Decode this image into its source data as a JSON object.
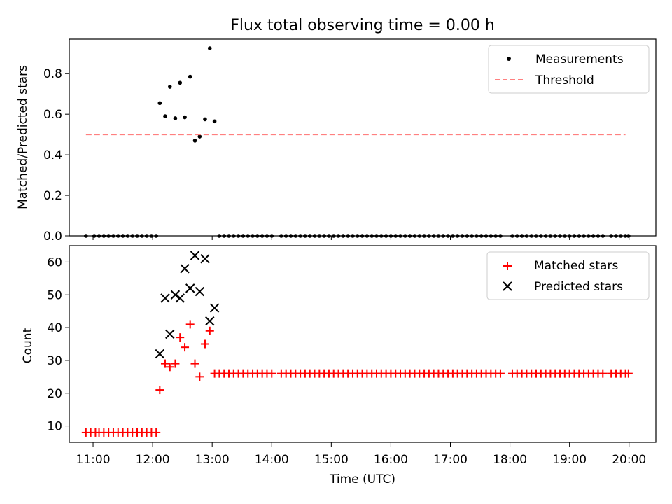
{
  "chart_data": [
    {
      "type": "scatter",
      "title": "Flux total observing time = 0.00 h",
      "xlabel": "",
      "ylabel": "Matched/Predicted stars",
      "xlim": [
        10.6,
        20.45
      ],
      "ylim": [
        0,
        0.97
      ],
      "yticks": [
        0.0,
        0.2,
        0.4,
        0.6,
        0.8
      ],
      "ytick_labels": [
        "0.0",
        "0.2",
        "0.4",
        "0.6",
        "0.8"
      ],
      "legend_position": "top-right",
      "series": [
        {
          "name": "Measurements",
          "marker": "dot",
          "color": "#000000",
          "points": [
            [
              10.88,
              0
            ],
            [
              11.02,
              0
            ],
            [
              11.1,
              0
            ],
            [
              11.18,
              0
            ],
            [
              11.26,
              0
            ],
            [
              11.34,
              0
            ],
            [
              11.42,
              0
            ],
            [
              11.5,
              0
            ],
            [
              11.58,
              0
            ],
            [
              11.66,
              0
            ],
            [
              11.74,
              0
            ],
            [
              11.82,
              0
            ],
            [
              11.9,
              0
            ],
            [
              11.98,
              0
            ],
            [
              12.06,
              0
            ],
            [
              12.12,
              0.655
            ],
            [
              12.21,
              0.59
            ],
            [
              12.29,
              0.735
            ],
            [
              12.38,
              0.58
            ],
            [
              12.46,
              0.755
            ],
            [
              12.54,
              0.585
            ],
            [
              12.63,
              0.785
            ],
            [
              12.71,
              0.47
            ],
            [
              12.79,
              0.49
            ],
            [
              12.88,
              0.575
            ],
            [
              12.96,
              0.925
            ],
            [
              13.04,
              0.565
            ],
            [
              13.12,
              0
            ],
            [
              13.2,
              0
            ],
            [
              13.28,
              0
            ],
            [
              13.36,
              0
            ],
            [
              13.44,
              0
            ],
            [
              13.52,
              0
            ],
            [
              13.6,
              0
            ],
            [
              13.68,
              0
            ],
            [
              13.76,
              0
            ],
            [
              13.84,
              0
            ],
            [
              13.92,
              0
            ],
            [
              14.0,
              0
            ],
            [
              14.16,
              0
            ],
            [
              14.24,
              0
            ],
            [
              14.32,
              0
            ],
            [
              14.4,
              0
            ],
            [
              14.48,
              0
            ],
            [
              14.56,
              0
            ],
            [
              14.64,
              0
            ],
            [
              14.72,
              0
            ],
            [
              14.8,
              0
            ],
            [
              14.88,
              0
            ],
            [
              14.96,
              0
            ],
            [
              15.04,
              0
            ],
            [
              15.12,
              0
            ],
            [
              15.2,
              0
            ],
            [
              15.28,
              0
            ],
            [
              15.36,
              0
            ],
            [
              15.44,
              0
            ],
            [
              15.52,
              0
            ],
            [
              15.6,
              0
            ],
            [
              15.68,
              0
            ],
            [
              15.76,
              0
            ],
            [
              15.84,
              0
            ],
            [
              15.92,
              0
            ],
            [
              16.0,
              0
            ],
            [
              16.08,
              0
            ],
            [
              16.16,
              0
            ],
            [
              16.24,
              0
            ],
            [
              16.32,
              0
            ],
            [
              16.4,
              0
            ],
            [
              16.48,
              0
            ],
            [
              16.56,
              0
            ],
            [
              16.64,
              0
            ],
            [
              16.72,
              0
            ],
            [
              16.8,
              0
            ],
            [
              16.88,
              0
            ],
            [
              16.96,
              0
            ],
            [
              17.04,
              0
            ],
            [
              17.12,
              0
            ],
            [
              17.2,
              0
            ],
            [
              17.28,
              0
            ],
            [
              17.36,
              0
            ],
            [
              17.44,
              0
            ],
            [
              17.52,
              0
            ],
            [
              17.6,
              0
            ],
            [
              17.68,
              0
            ],
            [
              17.76,
              0
            ],
            [
              17.84,
              0
            ],
            [
              18.04,
              0
            ],
            [
              18.12,
              0
            ],
            [
              18.2,
              0
            ],
            [
              18.28,
              0
            ],
            [
              18.36,
              0
            ],
            [
              18.44,
              0
            ],
            [
              18.52,
              0
            ],
            [
              18.6,
              0
            ],
            [
              18.68,
              0
            ],
            [
              18.76,
              0
            ],
            [
              18.84,
              0
            ],
            [
              18.92,
              0
            ],
            [
              19.0,
              0
            ],
            [
              19.08,
              0
            ],
            [
              19.16,
              0
            ],
            [
              19.24,
              0
            ],
            [
              19.32,
              0
            ],
            [
              19.4,
              0
            ],
            [
              19.48,
              0
            ],
            [
              19.56,
              0
            ],
            [
              19.7,
              0
            ],
            [
              19.78,
              0
            ],
            [
              19.86,
              0
            ],
            [
              19.94,
              0
            ],
            [
              19.99,
              0
            ]
          ]
        },
        {
          "name": "Threshold",
          "marker": "dashed-line",
          "color": "#ff8080",
          "points": [
            [
              10.88,
              0.5
            ],
            [
              19.94,
              0.5
            ]
          ]
        }
      ]
    },
    {
      "type": "scatter",
      "title": "",
      "xlabel": "Time (UTC)",
      "ylabel": "Count",
      "xlim": [
        10.6,
        20.45
      ],
      "ylim": [
        5,
        65
      ],
      "xticks": [
        11,
        12,
        13,
        14,
        15,
        16,
        17,
        18,
        19,
        20
      ],
      "xtick_labels": [
        "11:00",
        "12:00",
        "13:00",
        "14:00",
        "15:00",
        "16:00",
        "17:00",
        "18:00",
        "19:00",
        "20:00"
      ],
      "yticks": [
        10,
        20,
        30,
        40,
        50,
        60
      ],
      "ytick_labels": [
        "10",
        "20",
        "30",
        "40",
        "50",
        "60"
      ],
      "legend_position": "top-right",
      "series": [
        {
          "name": "Matched stars",
          "marker": "plus",
          "color": "#ff0000",
          "points": [
            [
              10.88,
              8
            ],
            [
              10.96,
              8
            ],
            [
              11.04,
              8
            ],
            [
              11.1,
              8
            ],
            [
              11.18,
              8
            ],
            [
              11.26,
              8
            ],
            [
              11.34,
              8
            ],
            [
              11.42,
              8
            ],
            [
              11.5,
              8
            ],
            [
              11.58,
              8
            ],
            [
              11.66,
              8
            ],
            [
              11.74,
              8
            ],
            [
              11.82,
              8
            ],
            [
              11.9,
              8
            ],
            [
              11.98,
              8
            ],
            [
              12.06,
              8
            ],
            [
              12.12,
              21
            ],
            [
              12.21,
              29
            ],
            [
              12.29,
              28
            ],
            [
              12.38,
              29
            ],
            [
              12.46,
              37
            ],
            [
              12.54,
              34
            ],
            [
              12.63,
              41
            ],
            [
              12.71,
              29
            ],
            [
              12.79,
              25
            ],
            [
              12.88,
              35
            ],
            [
              12.96,
              39
            ],
            [
              13.04,
              26
            ],
            [
              13.12,
              26
            ],
            [
              13.2,
              26
            ],
            [
              13.28,
              26
            ],
            [
              13.36,
              26
            ],
            [
              13.44,
              26
            ],
            [
              13.52,
              26
            ],
            [
              13.6,
              26
            ],
            [
              13.68,
              26
            ],
            [
              13.76,
              26
            ],
            [
              13.84,
              26
            ],
            [
              13.92,
              26
            ],
            [
              14.0,
              26
            ],
            [
              14.16,
              26
            ],
            [
              14.24,
              26
            ],
            [
              14.32,
              26
            ],
            [
              14.4,
              26
            ],
            [
              14.48,
              26
            ],
            [
              14.56,
              26
            ],
            [
              14.64,
              26
            ],
            [
              14.72,
              26
            ],
            [
              14.8,
              26
            ],
            [
              14.88,
              26
            ],
            [
              14.96,
              26
            ],
            [
              15.04,
              26
            ],
            [
              15.12,
              26
            ],
            [
              15.2,
              26
            ],
            [
              15.28,
              26
            ],
            [
              15.36,
              26
            ],
            [
              15.44,
              26
            ],
            [
              15.52,
              26
            ],
            [
              15.6,
              26
            ],
            [
              15.68,
              26
            ],
            [
              15.76,
              26
            ],
            [
              15.84,
              26
            ],
            [
              15.92,
              26
            ],
            [
              16.0,
              26
            ],
            [
              16.08,
              26
            ],
            [
              16.16,
              26
            ],
            [
              16.24,
              26
            ],
            [
              16.32,
              26
            ],
            [
              16.4,
              26
            ],
            [
              16.48,
              26
            ],
            [
              16.56,
              26
            ],
            [
              16.64,
              26
            ],
            [
              16.72,
              26
            ],
            [
              16.8,
              26
            ],
            [
              16.88,
              26
            ],
            [
              16.96,
              26
            ],
            [
              17.04,
              26
            ],
            [
              17.12,
              26
            ],
            [
              17.2,
              26
            ],
            [
              17.28,
              26
            ],
            [
              17.36,
              26
            ],
            [
              17.44,
              26
            ],
            [
              17.52,
              26
            ],
            [
              17.6,
              26
            ],
            [
              17.68,
              26
            ],
            [
              17.76,
              26
            ],
            [
              17.84,
              26
            ],
            [
              18.04,
              26
            ],
            [
              18.12,
              26
            ],
            [
              18.2,
              26
            ],
            [
              18.28,
              26
            ],
            [
              18.36,
              26
            ],
            [
              18.44,
              26
            ],
            [
              18.52,
              26
            ],
            [
              18.6,
              26
            ],
            [
              18.68,
              26
            ],
            [
              18.76,
              26
            ],
            [
              18.84,
              26
            ],
            [
              18.92,
              26
            ],
            [
              19.0,
              26
            ],
            [
              19.08,
              26
            ],
            [
              19.16,
              26
            ],
            [
              19.24,
              26
            ],
            [
              19.32,
              26
            ],
            [
              19.4,
              26
            ],
            [
              19.48,
              26
            ],
            [
              19.56,
              26
            ],
            [
              19.7,
              26
            ],
            [
              19.78,
              26
            ],
            [
              19.86,
              26
            ],
            [
              19.94,
              26
            ],
            [
              19.99,
              26
            ]
          ]
        },
        {
          "name": "Predicted stars",
          "marker": "x",
          "color": "#000000",
          "points": [
            [
              12.12,
              32
            ],
            [
              12.21,
              49
            ],
            [
              12.29,
              38
            ],
            [
              12.38,
              50
            ],
            [
              12.46,
              49
            ],
            [
              12.54,
              58
            ],
            [
              12.63,
              52
            ],
            [
              12.71,
              62
            ],
            [
              12.79,
              51
            ],
            [
              12.88,
              61
            ],
            [
              12.96,
              42
            ],
            [
              13.04,
              46
            ]
          ]
        }
      ]
    }
  ]
}
